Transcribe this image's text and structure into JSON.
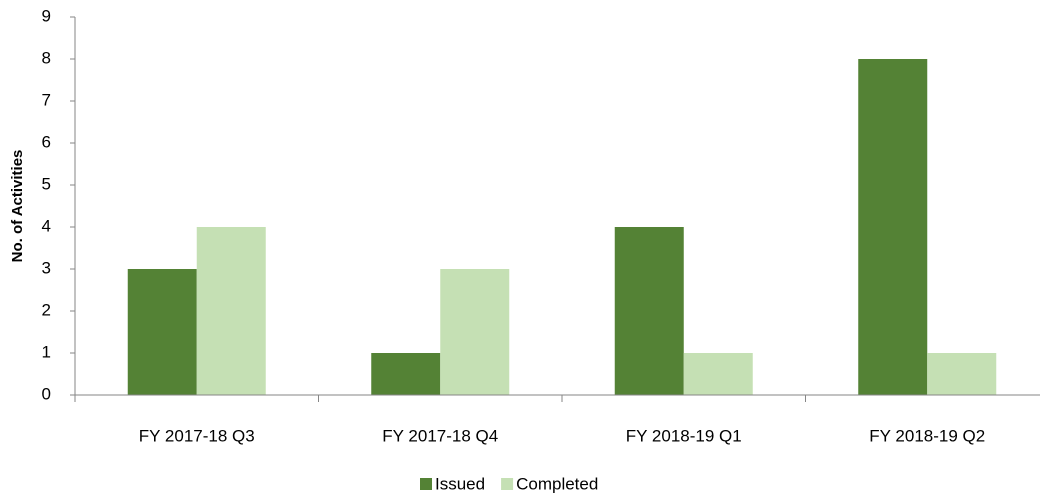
{
  "chart_data": {
    "type": "bar",
    "categories": [
      "FY 2017-18 Q3",
      "FY 2017-18 Q4",
      "FY 2018-19 Q1",
      "FY 2018-19 Q2"
    ],
    "series": [
      {
        "name": "Issued",
        "color": "#548235",
        "values": [
          3,
          1,
          4,
          8
        ]
      },
      {
        "name": "Completed",
        "color": "#c5e0b4",
        "values": [
          4,
          3,
          1,
          1
        ]
      }
    ],
    "y_label": "No. of Activities",
    "ylim": [
      0,
      9
    ],
    "yticks": [
      0,
      1,
      2,
      3,
      4,
      5,
      6,
      7,
      8,
      9
    ],
    "grid": false,
    "legend": "bottom"
  }
}
